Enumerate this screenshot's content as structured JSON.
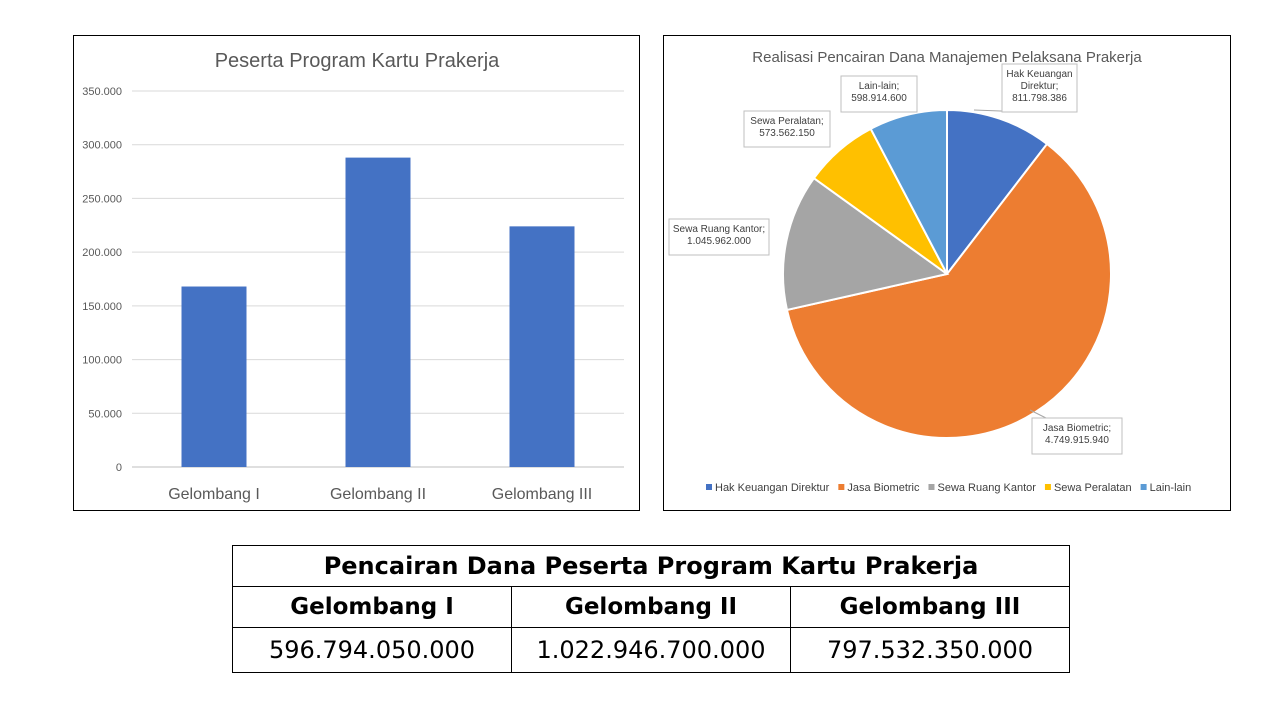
{
  "chart_data": [
    {
      "type": "bar",
      "title": "Peserta Program Kartu Prakerja",
      "categories": [
        "Gelombang I",
        "Gelombang II",
        "Gelombang III"
      ],
      "values": [
        168000,
        288000,
        224000
      ],
      "yticks": [
        "0",
        "50.000",
        "100.000",
        "150.000",
        "200.000",
        "250.000",
        "300.000",
        "350.000"
      ],
      "ylim": [
        0,
        350000
      ],
      "grid": true,
      "colors": [
        "#4472C4"
      ]
    },
    {
      "type": "pie",
      "title": "Realisasi Pencairan Dana Manajemen Pelaksana Prakerja",
      "legend_position": "bottom",
      "slices": [
        {
          "name": "Hak Keuangan Direktur",
          "value": 811798386,
          "label_lines": [
            "Hak Keuangan",
            "Direktur;",
            "811.798.386"
          ],
          "color": "#4472C4"
        },
        {
          "name": "Jasa Biometric",
          "value": 4749915940,
          "label_lines": [
            "Jasa Biometric;",
            "4.749.915.940"
          ],
          "color": "#ED7D31"
        },
        {
          "name": "Sewa Ruang Kantor",
          "value": 1045962000,
          "label_lines": [
            "Sewa Ruang Kantor;",
            "1.045.962.000"
          ],
          "color": "#A5A5A5"
        },
        {
          "name": "Sewa Peralatan",
          "value": 573562150,
          "label_lines": [
            "Sewa Peralatan;",
            "573.562.150"
          ],
          "color": "#FFC000"
        },
        {
          "name": "Lain-lain",
          "value": 598914600,
          "label_lines": [
            "Lain-lain;",
            "598.914.600"
          ],
          "color": "#5B9BD5"
        }
      ]
    }
  ],
  "table": {
    "title": "Pencairan Dana Peserta Program Kartu Prakerja",
    "headers": [
      "Gelombang I",
      "Gelombang II",
      "Gelombang III"
    ],
    "values": [
      "596.794.050.000",
      "1.022.946.700.000",
      "797.532.350.000"
    ]
  }
}
